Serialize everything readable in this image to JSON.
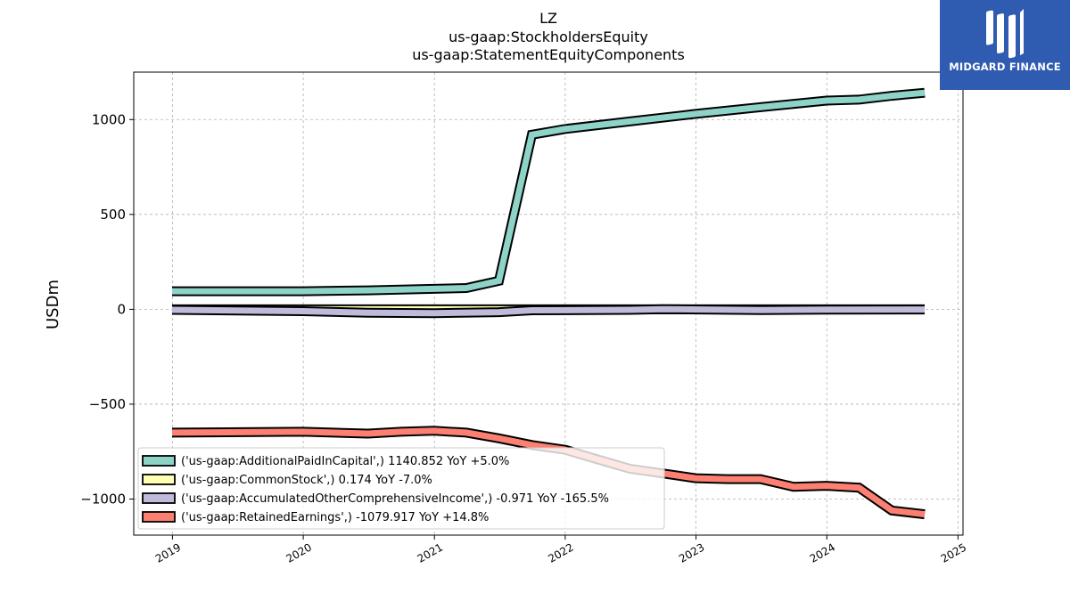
{
  "title": {
    "line1": "LZ",
    "line2": "us-gaap:StockholdersEquity",
    "line3": "us-gaap:StatementEquityComponents"
  },
  "logo": {
    "text": "MIDGARD FINANCE",
    "color": "#2f5bb0"
  },
  "chart_data": {
    "type": "line",
    "ylabel": "USDm",
    "xlabel": "",
    "ylim": [
      -1190,
      1250
    ],
    "xlim": [
      "2018-09-15",
      "2025-01-15"
    ],
    "grid": true,
    "legend_position": "lower-left",
    "x_ticks": [
      "2019",
      "2020",
      "2021",
      "2022",
      "2023",
      "2024",
      "2025"
    ],
    "y_ticks": [
      1000,
      500,
      0,
      -500,
      -1000
    ],
    "y_tick_labels": [
      "1000",
      "500",
      "0",
      "−500",
      "−1000"
    ],
    "series": [
      {
        "name": "('us-gaap:AdditionalPaidInCapital',) 1140.852 YoY +5.0%",
        "color": "#8dd3c7",
        "x": [
          "2018-12-31",
          "2019-12-31",
          "2020-06-30",
          "2020-12-31",
          "2021-03-31",
          "2021-06-30",
          "2021-09-30",
          "2021-12-31",
          "2022-06-30",
          "2022-12-31",
          "2023-06-30",
          "2023-12-31",
          "2024-03-31",
          "2024-06-30",
          "2024-09-30"
        ],
        "y": [
          95,
          95,
          100,
          108,
          112,
          150,
          920,
          950,
          990,
          1030,
          1065,
          1100,
          1105,
          1125,
          1141
        ]
      },
      {
        "name": "('us-gaap:CommonStock',) 0.174 YoY -7.0%",
        "color": "#ffffb3",
        "x": [
          "2018-12-31",
          "2024-09-30"
        ],
        "y": [
          0.2,
          0.174
        ]
      },
      {
        "name": "('us-gaap:AccumulatedOtherComprehensiveIncome',) -0.971 YoY -165.5%",
        "color": "#bebada",
        "x": [
          "2018-12-31",
          "2019-12-31",
          "2020-06-30",
          "2020-12-31",
          "2021-06-30",
          "2021-09-30",
          "2022-06-30",
          "2022-09-30",
          "2023-06-30",
          "2023-12-31",
          "2024-09-30"
        ],
        "y": [
          -3,
          -10,
          -18,
          -20,
          -15,
          -5,
          -3,
          1,
          -4,
          -2,
          -0.971
        ]
      },
      {
        "name": "('us-gaap:RetainedEarnings',) -1079.917 YoY +14.8%",
        "color": "#fb8072",
        "x": [
          "2018-12-31",
          "2019-12-31",
          "2020-06-30",
          "2020-09-30",
          "2020-12-31",
          "2021-03-31",
          "2021-06-30",
          "2021-09-30",
          "2021-12-31",
          "2022-03-31",
          "2022-06-30",
          "2022-09-30",
          "2022-12-31",
          "2023-03-31",
          "2023-06-30",
          "2023-09-30",
          "2023-12-31",
          "2024-03-31",
          "2024-06-30",
          "2024-09-30"
        ],
        "y": [
          -650,
          -645,
          -655,
          -645,
          -640,
          -650,
          -680,
          -715,
          -740,
          -790,
          -840,
          -865,
          -890,
          -895,
          -895,
          -935,
          -930,
          -940,
          -1060,
          -1080
        ]
      }
    ]
  }
}
